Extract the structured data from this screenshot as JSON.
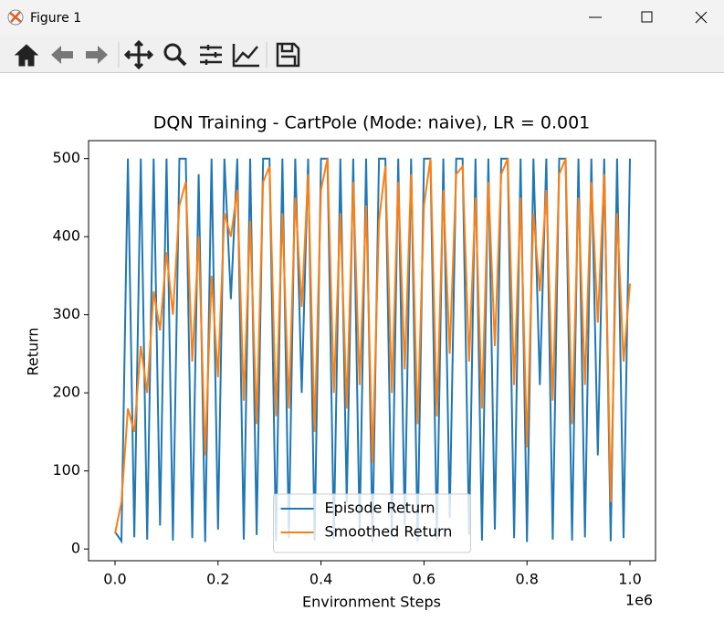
{
  "window": {
    "title": "Figure 1"
  },
  "chart_data": {
    "type": "line",
    "title": "DQN Training - CartPole (Mode: naive), LR = 0.001",
    "xlabel": "Environment Steps",
    "ylabel": "Return",
    "x_offset_label": "1e6",
    "x": [
      0,
      12500,
      25000,
      37500,
      50000,
      62500,
      75000,
      87500,
      100000,
      112500,
      125000,
      137500,
      150000,
      162500,
      175000,
      187500,
      200000,
      212500,
      225000,
      237500,
      250000,
      262500,
      275000,
      287500,
      300000,
      312500,
      325000,
      337500,
      350000,
      362500,
      375000,
      387500,
      400000,
      412500,
      425000,
      437500,
      450000,
      462500,
      475000,
      487500,
      500000,
      512500,
      525000,
      537500,
      550000,
      562500,
      575000,
      587500,
      600000,
      612500,
      625000,
      637500,
      650000,
      662500,
      675000,
      687500,
      700000,
      712500,
      725000,
      737500,
      750000,
      762500,
      775000,
      787500,
      800000,
      812500,
      825000,
      837500,
      850000,
      862500,
      875000,
      887500,
      900000,
      912500,
      925000,
      937500,
      950000,
      962500,
      975000,
      987500,
      1000000
    ],
    "series": [
      {
        "name": "Episode Return",
        "color": "#1f77b4",
        "values": [
          22,
          10,
          500,
          15,
          500,
          12,
          500,
          30,
          500,
          11,
          500,
          500,
          14,
          480,
          9,
          500,
          25,
          500,
          320,
          500,
          12,
          500,
          18,
          500,
          500,
          10,
          500,
          14,
          500,
          200,
          500,
          11,
          500,
          500,
          13,
          500,
          60,
          500,
          20,
          500,
          9,
          500,
          500,
          15,
          500,
          30,
          500,
          10,
          500,
          500,
          12,
          500,
          40,
          500,
          500,
          18,
          500,
          11,
          500,
          25,
          500,
          500,
          14,
          500,
          9,
          500,
          210,
          500,
          12,
          500,
          500,
          11,
          500,
          15,
          500,
          120,
          500,
          10,
          500,
          14,
          500
        ]
      },
      {
        "name": "Smoothed Return",
        "color": "#ff7f0e",
        "values": [
          20,
          60,
          180,
          150,
          260,
          200,
          330,
          280,
          380,
          300,
          440,
          470,
          240,
          400,
          120,
          350,
          220,
          430,
          400,
          460,
          190,
          420,
          160,
          470,
          490,
          170,
          430,
          180,
          450,
          310,
          480,
          150,
          460,
          500,
          200,
          430,
          180,
          470,
          210,
          440,
          110,
          420,
          490,
          200,
          470,
          230,
          480,
          160,
          440,
          500,
          170,
          460,
          250,
          480,
          490,
          240,
          450,
          180,
          470,
          260,
          480,
          500,
          210,
          450,
          130,
          430,
          330,
          460,
          190,
          480,
          500,
          160,
          450,
          210,
          470,
          290,
          480,
          60,
          430,
          240,
          340
        ]
      }
    ],
    "xlim": [
      -51400,
      1049600
    ],
    "ylim": [
      -15,
      523
    ],
    "xticks": [
      {
        "value": 0,
        "label": "0.0"
      },
      {
        "value": 200000,
        "label": "0.2"
      },
      {
        "value": 400000,
        "label": "0.4"
      },
      {
        "value": 600000,
        "label": "0.6"
      },
      {
        "value": 800000,
        "label": "0.8"
      },
      {
        "value": 1000000,
        "label": "1.0"
      }
    ],
    "yticks": [
      0,
      100,
      200,
      300,
      400,
      500
    ],
    "legend": "lower center"
  }
}
